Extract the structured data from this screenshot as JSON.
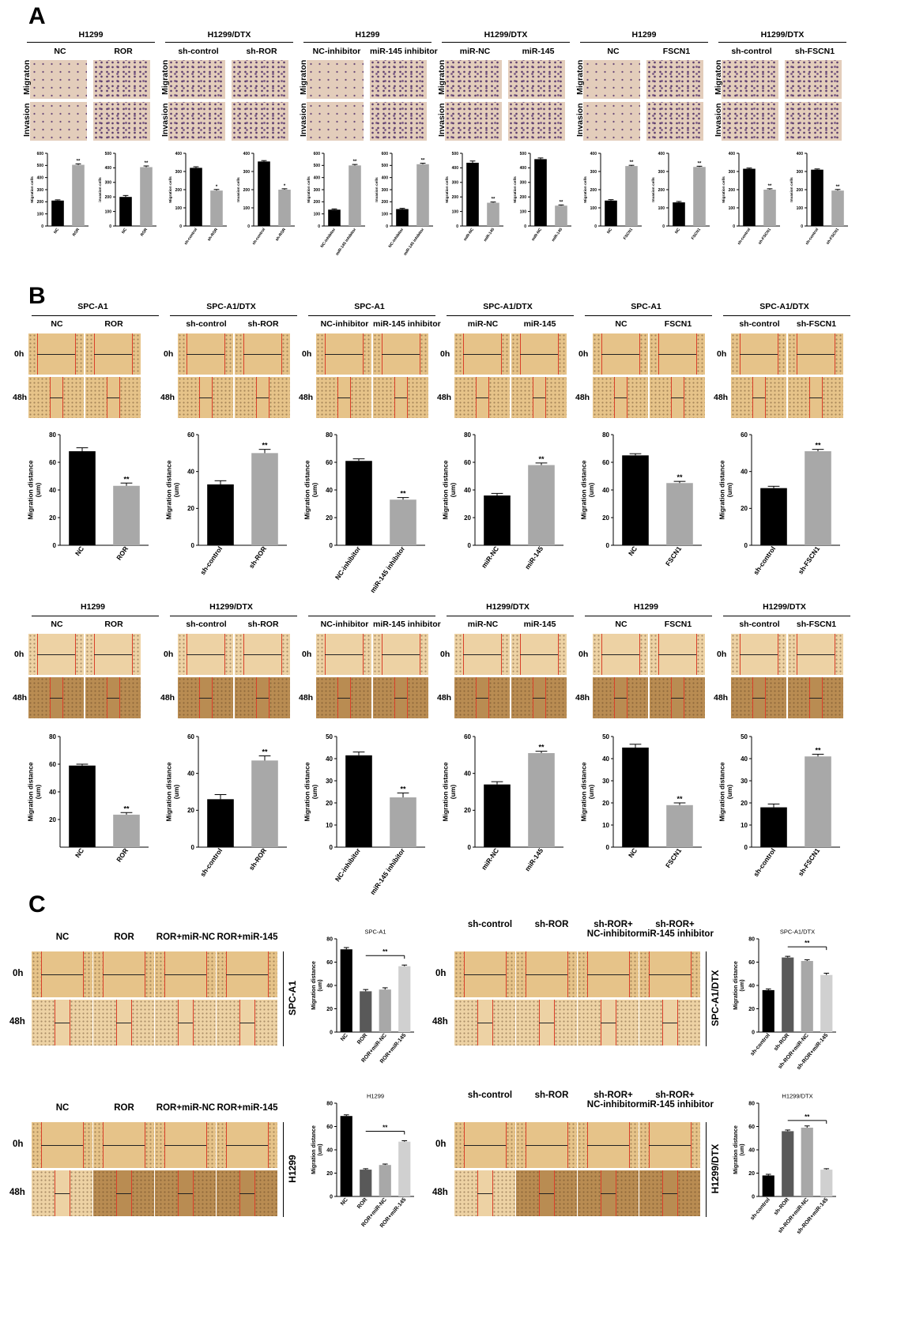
{
  "panels": {
    "a": "A",
    "b": "B",
    "c": "C"
  },
  "row_labels": {
    "migration": "Migraton",
    "invasion": "Invasion",
    "t0": "0h",
    "t48": "48h"
  },
  "colors": {
    "black_bar": "#000000",
    "gray_bar": "#a8a8a8",
    "dark_gray": "#595959",
    "light_gray": "#d0d0d0",
    "scratch_line": "#d9412a"
  },
  "panel_a": {
    "groups": [
      {
        "title": "H1299",
        "cols": [
          "NC",
          "ROR"
        ]
      },
      {
        "title": "H1299/DTX",
        "cols": [
          "sh-control",
          "sh-ROR"
        ]
      },
      {
        "title": "H1299",
        "cols": [
          "NC-inhibitor",
          "miR-145 inhibitor"
        ]
      },
      {
        "title": "H1299/DTX",
        "cols": [
          "miR-NC",
          "miR-145"
        ]
      },
      {
        "title": "H1299",
        "cols": [
          "NC",
          "FSCN1"
        ]
      },
      {
        "title": "H1299/DTX",
        "cols": [
          "sh-control",
          "sh-FSCN1"
        ]
      }
    ]
  },
  "panel_b": {
    "rows": [
      [
        {
          "title": "SPC-A1",
          "cols": [
            "NC",
            "ROR"
          ]
        },
        {
          "title": "SPC-A1/DTX",
          "cols": [
            "sh-control",
            "sh-ROR"
          ]
        },
        {
          "title": "SPC-A1",
          "cols": [
            "NC-inhibitor",
            "miR-145 inhibitor"
          ]
        },
        {
          "title": "SPC-A1/DTX",
          "cols": [
            "miR-NC",
            "miR-145"
          ]
        },
        {
          "title": "SPC-A1",
          "cols": [
            "NC",
            "FSCN1"
          ]
        },
        {
          "title": "SPC-A1/DTX",
          "cols": [
            "sh-control",
            "sh-FSCN1"
          ]
        }
      ],
      [
        {
          "title": "H1299",
          "cols": [
            "NC",
            "ROR"
          ]
        },
        {
          "title": "H1299/DTX",
          "cols": [
            "sh-control",
            "sh-ROR"
          ]
        },
        {
          "title": "",
          "cols": [
            "NC-inhibitor",
            "miR-145 inhibitor"
          ]
        },
        {
          "title": "H1299/DTX",
          "cols": [
            "miR-NC",
            "miR-145"
          ]
        },
        {
          "title": "H1299",
          "cols": [
            "NC",
            "FSCN1"
          ]
        },
        {
          "title": "H1299/DTX",
          "cols": [
            "sh-control",
            "sh-FSCN1"
          ]
        }
      ]
    ]
  },
  "panel_c": {
    "blocks": [
      {
        "side": "SPC-A1",
        "cols": [
          "NC",
          "ROR",
          "ROR+miR-NC",
          "ROR+miR-145"
        ]
      },
      {
        "side": "SPC-A1/DTX",
        "cols": [
          "sh-control",
          "sh-ROR",
          "sh-ROR+\nNC-inhibitor",
          "sh-ROR+\nmiR-145 inhibitor"
        ]
      },
      {
        "side": "H1299",
        "cols": [
          "NC",
          "ROR",
          "ROR+miR-NC",
          "ROR+miR-145"
        ]
      },
      {
        "side": "H1299/DTX",
        "cols": [
          "sh-control",
          "sh-ROR",
          "sh-ROR+\nNC-inhibitor",
          "sh-ROR+\nmiR-145 inhibitor"
        ]
      }
    ]
  },
  "chart_data": [
    {
      "id": "A1",
      "type": "bar",
      "categories": [
        "NC",
        "ROR"
      ],
      "values": [
        210,
        505
      ],
      "errors": [
        6,
        8
      ],
      "ylim": [
        0,
        600
      ],
      "yticks": [
        0,
        100,
        200,
        300,
        400,
        500,
        600
      ],
      "ylabel": "Migration cells",
      "sig": [
        "",
        "**"
      ]
    },
    {
      "id": "A2",
      "type": "bar",
      "categories": [
        "NC",
        "ROR"
      ],
      "values": [
        200,
        405
      ],
      "errors": [
        10,
        8
      ],
      "ylim": [
        0,
        500
      ],
      "yticks": [
        0,
        100,
        200,
        300,
        400,
        500
      ],
      "ylabel": "invasion cells",
      "sig": [
        "",
        "**"
      ]
    },
    {
      "id": "A3",
      "type": "bar",
      "categories": [
        "sh-control",
        "sh-ROR"
      ],
      "values": [
        320,
        195
      ],
      "errors": [
        6,
        6
      ],
      "ylim": [
        0,
        400
      ],
      "yticks": [
        0,
        100,
        200,
        300,
        400
      ],
      "ylabel": "Migration cells",
      "sig": [
        "",
        "*"
      ]
    },
    {
      "id": "A4",
      "type": "bar",
      "categories": [
        "sh-control",
        "sh-ROR"
      ],
      "values": [
        355,
        200
      ],
      "errors": [
        5,
        5
      ],
      "ylim": [
        0,
        400
      ],
      "yticks": [
        0,
        100,
        200,
        300,
        400
      ],
      "ylabel": "Invasion cells",
      "sig": [
        "",
        "*"
      ]
    },
    {
      "id": "A5",
      "type": "bar",
      "categories": [
        "NC-inhibitor",
        "miR-145 inhibitor"
      ],
      "values": [
        135,
        500
      ],
      "errors": [
        6,
        8
      ],
      "ylim": [
        0,
        600
      ],
      "yticks": [
        0,
        100,
        200,
        300,
        400,
        500,
        600
      ],
      "ylabel": "Migration cells",
      "sig": [
        "",
        "**"
      ]
    },
    {
      "id": "A6",
      "type": "bar",
      "categories": [
        "NC-inhibitor",
        "miR-145 inhibitor"
      ],
      "values": [
        140,
        510
      ],
      "errors": [
        6,
        8
      ],
      "ylim": [
        0,
        600
      ],
      "yticks": [
        0,
        100,
        200,
        300,
        400,
        500,
        600
      ],
      "ylabel": "Invasion cells",
      "sig": [
        "",
        "**"
      ]
    },
    {
      "id": "A7",
      "type": "bar",
      "categories": [
        "miR-NC",
        "miR-145"
      ],
      "values": [
        435,
        160
      ],
      "errors": [
        12,
        5
      ],
      "ylim": [
        0,
        500
      ],
      "yticks": [
        0,
        100,
        200,
        300,
        400,
        500
      ],
      "ylabel": "Migration cells",
      "sig": [
        "",
        "**"
      ]
    },
    {
      "id": "A8",
      "type": "bar",
      "categories": [
        "miR-NC",
        "miR-145"
      ],
      "values": [
        460,
        140
      ],
      "errors": [
        8,
        5
      ],
      "ylim": [
        0,
        500
      ],
      "yticks": [
        0,
        100,
        200,
        300,
        400,
        500
      ],
      "ylabel": "Migration cells",
      "sig": [
        "",
        "**"
      ]
    },
    {
      "id": "A9",
      "type": "bar",
      "categories": [
        "NC",
        "FSCN1"
      ],
      "values": [
        140,
        330
      ],
      "errors": [
        5,
        4
      ],
      "ylim": [
        0,
        400
      ],
      "yticks": [
        0,
        100,
        200,
        300,
        400
      ],
      "ylabel": "Migration cells",
      "sig": [
        "",
        "**"
      ]
    },
    {
      "id": "A10",
      "type": "bar",
      "categories": [
        "NC",
        "FSCN1"
      ],
      "values": [
        130,
        325
      ],
      "errors": [
        5,
        4
      ],
      "ylim": [
        0,
        400
      ],
      "yticks": [
        0,
        100,
        200,
        300,
        400
      ],
      "ylabel": "Invasion cells",
      "sig": [
        "",
        "**"
      ]
    },
    {
      "id": "A11",
      "type": "bar",
      "categories": [
        "sh-control",
        "sh-FSCN1"
      ],
      "values": [
        315,
        200
      ],
      "errors": [
        4,
        5
      ],
      "ylim": [
        0,
        400
      ],
      "yticks": [
        0,
        100,
        200,
        300,
        400
      ],
      "ylabel": "Migration cells",
      "sig": [
        "",
        "**"
      ]
    },
    {
      "id": "A12",
      "type": "bar",
      "categories": [
        "sh-control",
        "sh-FSCN1"
      ],
      "values": [
        310,
        195
      ],
      "errors": [
        4,
        6
      ],
      "ylim": [
        0,
        400
      ],
      "yticks": [
        0,
        100,
        200,
        300,
        400
      ],
      "ylabel": "Invasion cells",
      "sig": [
        "",
        "**"
      ]
    },
    {
      "id": "B1",
      "type": "bar",
      "categories": [
        "NC",
        "ROR"
      ],
      "values": [
        68,
        43
      ],
      "errors": [
        2.5,
        2
      ],
      "ylim": [
        0,
        80
      ],
      "yticks": [
        0,
        20,
        40,
        60,
        80
      ],
      "ylabel": "Migration distance\n(um)",
      "sig": [
        "",
        "**"
      ]
    },
    {
      "id": "B2",
      "type": "bar",
      "categories": [
        "sh-control",
        "sh-ROR"
      ],
      "values": [
        33,
        50
      ],
      "errors": [
        2,
        2
      ],
      "ylim": [
        0,
        60
      ],
      "yticks": [
        0,
        20,
        40,
        60
      ],
      "ylabel": "Migration distance\n(um)",
      "sig": [
        "",
        "**"
      ]
    },
    {
      "id": "B3",
      "type": "bar",
      "categories": [
        "NC-inhibitor",
        "miR-145 inhibitor"
      ],
      "values": [
        61,
        33
      ],
      "errors": [
        1.5,
        1.5
      ],
      "ylim": [
        0,
        80
      ],
      "yticks": [
        0,
        20,
        40,
        60,
        80
      ],
      "ylabel": "Migration distance\n(um)",
      "sig": [
        "",
        "**"
      ]
    },
    {
      "id": "B4",
      "type": "bar",
      "categories": [
        "miR-NC",
        "miR-145"
      ],
      "values": [
        36,
        58
      ],
      "errors": [
        1.5,
        1.5
      ],
      "ylim": [
        0,
        80
      ],
      "yticks": [
        0,
        20,
        40,
        60,
        80
      ],
      "ylabel": "Migration distance\n(um)",
      "sig": [
        "",
        "**"
      ]
    },
    {
      "id": "B5",
      "type": "bar",
      "categories": [
        "NC",
        "FSCN1"
      ],
      "values": [
        65,
        45
      ],
      "errors": [
        1.2,
        1.2
      ],
      "ylim": [
        0,
        80
      ],
      "yticks": [
        0,
        20,
        40,
        60,
        80
      ],
      "ylabel": "Migration distance\n(um)",
      "sig": [
        "",
        "**"
      ]
    },
    {
      "id": "B6",
      "type": "bar",
      "categories": [
        "sh-control",
        "sh-FSCN1"
      ],
      "values": [
        31,
        51
      ],
      "errors": [
        1,
        1
      ],
      "ylim": [
        0,
        60
      ],
      "yticks": [
        0,
        20,
        40,
        60
      ],
      "ylabel": "Migration distance\n(um)",
      "sig": [
        "",
        "**"
      ]
    },
    {
      "id": "B7",
      "type": "bar",
      "categories": [
        "NC",
        "ROR"
      ],
      "values": [
        59,
        23.5
      ],
      "errors": [
        1,
        1.5
      ],
      "ylim": [
        0,
        80
      ],
      "yticks": [
        20,
        40,
        60,
        80
      ],
      "ylabel": "Migration distance\n(um)",
      "sig": [
        "",
        "**"
      ]
    },
    {
      "id": "B8",
      "type": "bar",
      "categories": [
        "sh-control",
        "sh-ROR"
      ],
      "values": [
        26,
        47
      ],
      "errors": [
        2.5,
        2.5
      ],
      "ylim": [
        0,
        60
      ],
      "yticks": [
        0,
        20,
        40,
        60
      ],
      "ylabel": "Migration distance\n(um)",
      "sig": [
        "",
        "**"
      ]
    },
    {
      "id": "B9",
      "type": "bar",
      "categories": [
        "NC-inhibitor",
        "miR-145 inhibitor"
      ],
      "values": [
        41.5,
        22.5
      ],
      "errors": [
        1.5,
        2
      ],
      "ylim": [
        0,
        50
      ],
      "yticks": [
        0,
        10,
        20,
        30,
        40,
        50
      ],
      "ylabel": "Migration distance\n(um)",
      "sig": [
        "",
        "**"
      ]
    },
    {
      "id": "B10",
      "type": "bar",
      "categories": [
        "miR-NC",
        "miR-145"
      ],
      "values": [
        34,
        51
      ],
      "errors": [
        1.5,
        1
      ],
      "ylim": [
        0,
        60
      ],
      "yticks": [
        0,
        20,
        40,
        60
      ],
      "ylabel": "Migration distance\n(um)",
      "sig": [
        "",
        "**"
      ]
    },
    {
      "id": "B11",
      "type": "bar",
      "categories": [
        "NC",
        "FSCN1"
      ],
      "values": [
        45,
        19
      ],
      "errors": [
        1.5,
        1
      ],
      "ylim": [
        0,
        50
      ],
      "yticks": [
        0,
        10,
        20,
        30,
        40,
        50
      ],
      "ylabel": "Migration distance\n(um)",
      "sig": [
        "",
        "**"
      ]
    },
    {
      "id": "B12",
      "type": "bar",
      "categories": [
        "sh-control",
        "sh-FSCN1"
      ],
      "values": [
        18,
        41
      ],
      "errors": [
        1.5,
        1
      ],
      "ylim": [
        0,
        50
      ],
      "yticks": [
        0,
        10,
        20,
        30,
        40,
        50
      ],
      "ylabel": "Migration distance\n(um)",
      "sig": [
        "",
        "**"
      ]
    },
    {
      "id": "C1",
      "type": "bar",
      "title": "SPC-A1",
      "categories": [
        "NC",
        "ROR",
        "ROR+miR-NC",
        "ROR+miR-145"
      ],
      "values": [
        71,
        35,
        36.5,
        56.5
      ],
      "errors": [
        1.5,
        1.5,
        1.5,
        1
      ],
      "ylim": [
        0,
        80
      ],
      "yticks": [
        0,
        20,
        40,
        60,
        80
      ],
      "ylabel": "Migration distance\n(um)",
      "bracket": [
        1,
        3,
        "**"
      ]
    },
    {
      "id": "C2",
      "type": "bar",
      "title": "SPC-A1/DTX",
      "categories": [
        "sh-control",
        "sh-ROR",
        "sh-ROR+miR-NC",
        "sh-ROR+miR-145"
      ],
      "values": [
        36,
        64,
        61,
        49
      ],
      "errors": [
        1,
        1,
        1,
        1.5
      ],
      "ylim": [
        0,
        80
      ],
      "yticks": [
        0,
        20,
        40,
        60,
        80
      ],
      "ylabel": "Migration distance\n(um)",
      "bracket": [
        1,
        3,
        "**"
      ]
    },
    {
      "id": "C3",
      "type": "bar",
      "title": "H1299",
      "categories": [
        "NC",
        "ROR",
        "ROR+miR-NC",
        "ROR+miR-145"
      ],
      "values": [
        69,
        23,
        27,
        47
      ],
      "errors": [
        1,
        0.8,
        0.8,
        0.8
      ],
      "ylim": [
        0,
        80
      ],
      "yticks": [
        0,
        20,
        40,
        60,
        80
      ],
      "ylabel": "Migration distance\n(um)",
      "bracket": [
        1,
        3,
        "**"
      ]
    },
    {
      "id": "C4",
      "type": "bar",
      "title": "H1299/DTX",
      "categories": [
        "sh-control",
        "sh-ROR",
        "sh-ROR+miR-NC",
        "sh-ROR+miR-145"
      ],
      "values": [
        18,
        56,
        59,
        23
      ],
      "errors": [
        1,
        1,
        1.5,
        0.8
      ],
      "ylim": [
        0,
        80
      ],
      "yticks": [
        0,
        20,
        40,
        60,
        80
      ],
      "ylabel": "Migration distance\n(um)",
      "bracket": [
        1,
        3,
        "**"
      ]
    }
  ]
}
